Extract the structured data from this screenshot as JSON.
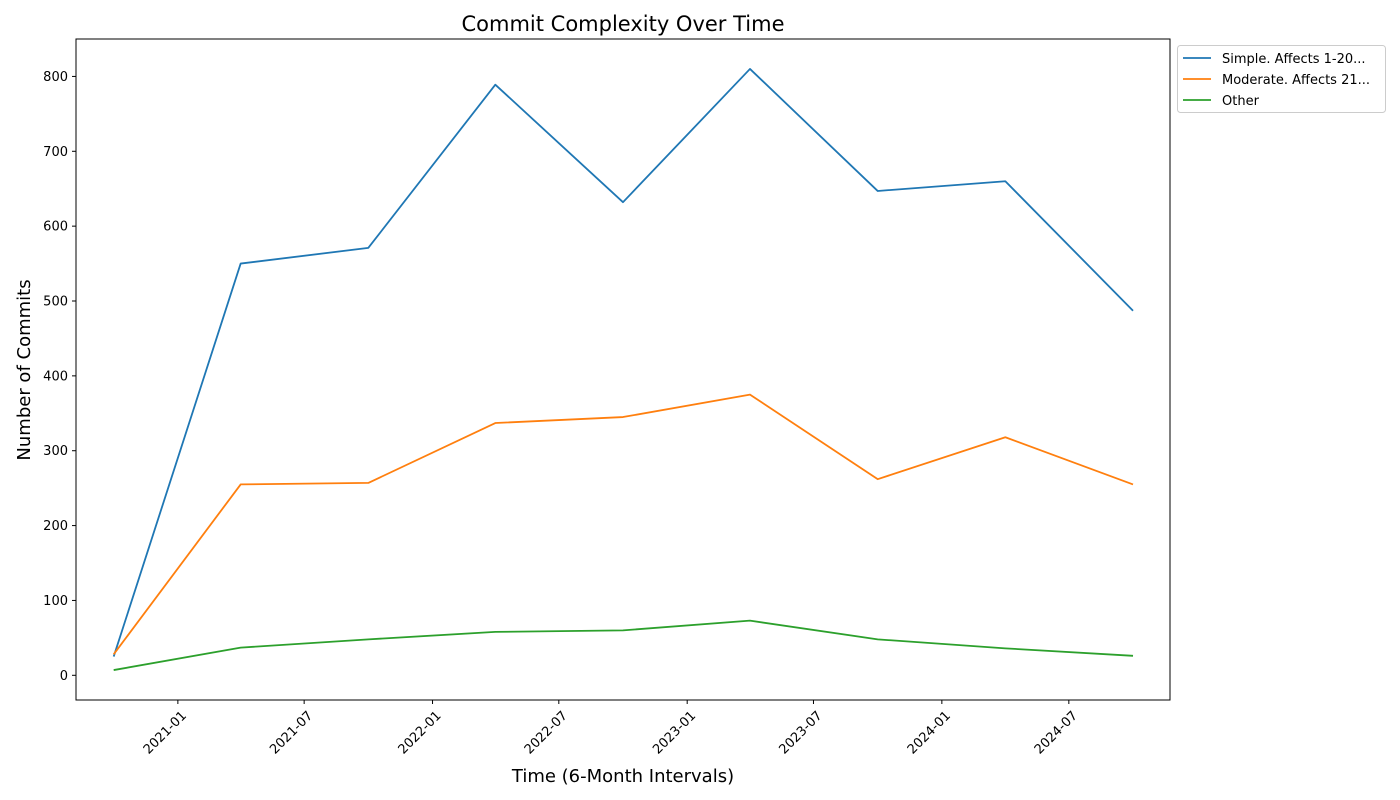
{
  "chart_data": {
    "type": "line",
    "title": "Commit Complexity Over Time",
    "xlabel": "Time (6-Month Intervals)",
    "ylabel": "Number of Commits",
    "x": [
      "2020-10-01",
      "2021-04-01",
      "2021-10-01",
      "2022-04-01",
      "2022-10-01",
      "2023-04-01",
      "2023-10-01",
      "2024-04-01",
      "2024-10-01"
    ],
    "xlim": [
      "2020-08-08",
      "2024-11-23"
    ],
    "ylim": [
      -33,
      850
    ],
    "x_ticks": [
      "2021-01",
      "2021-07",
      "2022-01",
      "2022-07",
      "2023-01",
      "2023-07",
      "2024-01",
      "2024-07"
    ],
    "x_tick_dates": [
      "2021-01-01",
      "2021-07-01",
      "2022-01-01",
      "2022-07-01",
      "2023-01-01",
      "2023-07-01",
      "2024-01-01",
      "2024-07-01"
    ],
    "y_ticks": [
      0,
      100,
      200,
      300,
      400,
      500,
      600,
      700,
      800
    ],
    "grid": false,
    "legend_position": "outside top-right",
    "series": [
      {
        "name": "Simple. Affects 1-20...",
        "color": "#1f77b4",
        "values": [
          25,
          550,
          571,
          789,
          632,
          810,
          647,
          660,
          487
        ]
      },
      {
        "name": "Moderate. Affects 21...",
        "color": "#ff7f0e",
        "values": [
          28,
          255,
          257,
          337,
          345,
          375,
          262,
          318,
          255
        ]
      },
      {
        "name": "Other",
        "color": "#2ca02c",
        "values": [
          7,
          37,
          48,
          58,
          60,
          73,
          48,
          36,
          26
        ]
      }
    ]
  }
}
